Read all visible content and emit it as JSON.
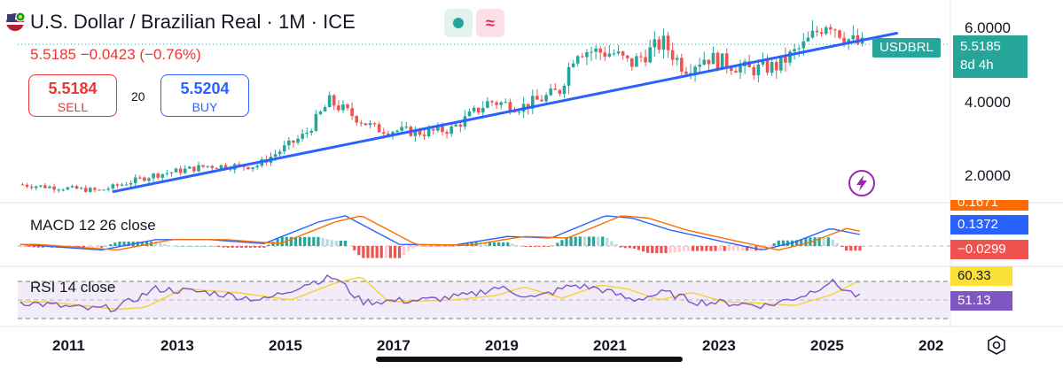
{
  "header": {
    "title": "U.S. Dollar / Brazilian Real · 1M · ICE",
    "price_line": "5.5185 −0.0423 (−0.76%)",
    "colors": {
      "up": "#26a69a",
      "down": "#ef5350",
      "trend": "#2962ff"
    }
  },
  "trade_panel": {
    "sell_value": "5.5184",
    "sell_label": "SELL",
    "spread": "20",
    "buy_value": "5.5204",
    "buy_label": "BUY"
  },
  "price_axis": {
    "ticks": [
      "6.0000",
      "4.0000",
      "2.0000"
    ],
    "symbol_tag": "USDBRL",
    "last_price": "5.5185",
    "countdown": "8d 4h"
  },
  "macd": {
    "title": "MACD 12 26 close",
    "tags": {
      "partial": "0.1671",
      "macd": "0.1372",
      "hist": "−0.0299"
    }
  },
  "rsi": {
    "title": "RSI 14 close",
    "tags": {
      "ma": "60.33",
      "rsi": "51.13"
    }
  },
  "time_axis": {
    "labels": [
      "2011",
      "2013",
      "2015",
      "2017",
      "2019",
      "2021",
      "2023",
      "2025",
      "202"
    ]
  },
  "chart_data": {
    "type": "candlestick",
    "symbol": "USDBRL",
    "interval": "1M",
    "title": "U.S. Dollar / Brazilian Real · 1M · ICE",
    "y_ticks": [
      2.0,
      4.0,
      6.0
    ],
    "x_ticks": [
      2011,
      2013,
      2015,
      2017,
      2019,
      2021,
      2023,
      2025
    ],
    "last": 5.5185,
    "change": -0.0423,
    "change_pct": -0.76,
    "key_points": [
      {
        "t": 2010.0,
        "v": 1.75
      },
      {
        "t": 2011.5,
        "v": 1.58
      },
      {
        "t": 2012.5,
        "v": 2.0
      },
      {
        "t": 2013.5,
        "v": 2.25
      },
      {
        "t": 2014.4,
        "v": 2.25
      },
      {
        "t": 2015.3,
        "v": 3.1
      },
      {
        "t": 2015.75,
        "v": 4.0
      },
      {
        "t": 2016.2,
        "v": 3.6
      },
      {
        "t": 2016.6,
        "v": 3.25
      },
      {
        "t": 2017.5,
        "v": 3.15
      },
      {
        "t": 2018.0,
        "v": 3.25
      },
      {
        "t": 2018.7,
        "v": 4.0
      },
      {
        "t": 2019.3,
        "v": 3.85
      },
      {
        "t": 2019.8,
        "v": 4.15
      },
      {
        "t": 2020.0,
        "v": 4.3
      },
      {
        "t": 2020.3,
        "v": 5.4
      },
      {
        "t": 2021.0,
        "v": 5.3
      },
      {
        "t": 2021.3,
        "v": 5.0
      },
      {
        "t": 2021.9,
        "v": 5.6
      },
      {
        "t": 2022.3,
        "v": 4.9
      },
      {
        "t": 2022.7,
        "v": 5.2
      },
      {
        "t": 2023.5,
        "v": 4.85
      },
      {
        "t": 2024.0,
        "v": 4.95
      },
      {
        "t": 2024.5,
        "v": 5.5
      },
      {
        "t": 2024.95,
        "v": 6.2
      },
      {
        "t": 2025.3,
        "v": 5.7
      },
      {
        "t": 2025.55,
        "v": 5.52
      }
    ],
    "trendline": [
      {
        "t": 2011.7,
        "v": 1.55
      },
      {
        "t": 2026.2,
        "v": 5.85
      }
    ],
    "macd": {
      "name": "MACD 12 26 close",
      "last_macd": 0.1372,
      "last_hist": -0.0299,
      "last_signal": 0.1671,
      "key_points": [
        {
          "t": 2010.0,
          "v": 0.02
        },
        {
          "t": 2011.5,
          "v": -0.05
        },
        {
          "t": 2012.5,
          "v": 0.08
        },
        {
          "t": 2013.5,
          "v": 0.08
        },
        {
          "t": 2014.5,
          "v": 0.03
        },
        {
          "t": 2015.5,
          "v": 0.3
        },
        {
          "t": 2016.0,
          "v": 0.38
        },
        {
          "t": 2017.0,
          "v": 0.02
        },
        {
          "t": 2018.0,
          "v": 0.01
        },
        {
          "t": 2019.0,
          "v": 0.12
        },
        {
          "t": 2019.8,
          "v": 0.1
        },
        {
          "t": 2020.8,
          "v": 0.38
        },
        {
          "t": 2021.3,
          "v": 0.35
        },
        {
          "t": 2022.0,
          "v": 0.2
        },
        {
          "t": 2023.0,
          "v": 0.05
        },
        {
          "t": 2023.7,
          "v": -0.05
        },
        {
          "t": 2024.3,
          "v": 0.05
        },
        {
          "t": 2024.95,
          "v": 0.22
        },
        {
          "t": 2025.55,
          "v": 0.137
        }
      ]
    },
    "rsi": {
      "name": "RSI 14 close",
      "last_rsi": 51.13,
      "last_ma": 60.33,
      "bands": [
        30,
        50,
        70
      ],
      "key_points": [
        {
          "t": 2010.0,
          "v": 48
        },
        {
          "t": 2011.3,
          "v": 40
        },
        {
          "t": 2011.8,
          "v": 42
        },
        {
          "t": 2012.5,
          "v": 62
        },
        {
          "t": 2013.5,
          "v": 58
        },
        {
          "t": 2014.5,
          "v": 50
        },
        {
          "t": 2015.3,
          "v": 68
        },
        {
          "t": 2015.8,
          "v": 75
        },
        {
          "t": 2016.3,
          "v": 48
        },
        {
          "t": 2017.5,
          "v": 50
        },
        {
          "t": 2018.3,
          "v": 55
        },
        {
          "t": 2018.8,
          "v": 64
        },
        {
          "t": 2019.5,
          "v": 52
        },
        {
          "t": 2020.2,
          "v": 66
        },
        {
          "t": 2020.7,
          "v": 62
        },
        {
          "t": 2021.3,
          "v": 50
        },
        {
          "t": 2021.9,
          "v": 58
        },
        {
          "t": 2022.5,
          "v": 48
        },
        {
          "t": 2023.0,
          "v": 47
        },
        {
          "t": 2023.8,
          "v": 44
        },
        {
          "t": 2024.5,
          "v": 56
        },
        {
          "t": 2024.95,
          "v": 70
        },
        {
          "t": 2025.55,
          "v": 51
        }
      ]
    }
  }
}
